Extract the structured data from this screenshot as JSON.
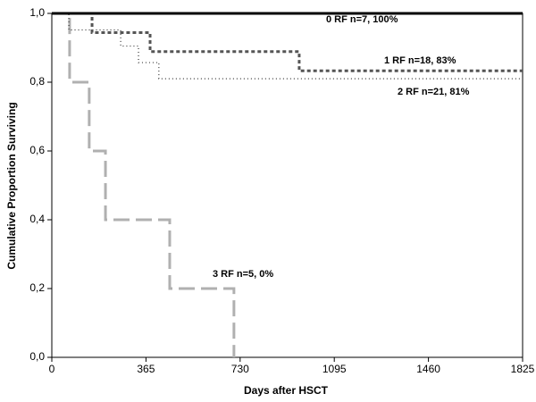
{
  "chart_data": {
    "type": "line",
    "xlabel": "Days after HSCT",
    "ylabel": "Cumulative Proportion Surviving",
    "xlim": [
      0,
      1825
    ],
    "xticks": [
      0,
      365,
      730,
      1095,
      1460,
      1825
    ],
    "ylim": [
      0,
      1
    ],
    "yticks": [
      {
        "value": 0,
        "label": "0,0"
      },
      {
        "value": 0.2,
        "label": "0,2"
      },
      {
        "value": 0.4,
        "label": "0,4"
      },
      {
        "value": 0.6,
        "label": "0,6"
      },
      {
        "value": 0.8,
        "label": "0,8"
      },
      {
        "value": 1,
        "label": "1,0"
      }
    ],
    "series": [
      {
        "name": "0 RF n=7, 100%",
        "color": "#000000",
        "dash": "none",
        "width": 3,
        "x": [
          0,
          1825
        ],
        "values": [
          1,
          1
        ]
      },
      {
        "name": "1 RF n=18, 83%",
        "color": "#555555",
        "dash": "4 3",
        "width": 3,
        "x": [
          0,
          156,
          156,
          381,
          381,
          959,
          959,
          1825
        ],
        "values": [
          1,
          1,
          0.944,
          0.944,
          0.889,
          0.889,
          0.833,
          0.833
        ]
      },
      {
        "name": "2 RF n=21, 81%",
        "color": "#333333",
        "dash": "1 3",
        "width": 1.2,
        "x": [
          0,
          66,
          66,
          267,
          267,
          336,
          336,
          415,
          415,
          1825
        ],
        "values": [
          1,
          1,
          0.952,
          0.952,
          0.905,
          0.905,
          0.857,
          0.857,
          0.81,
          0.81
        ]
      },
      {
        "name": "3 RF n=5, 0%",
        "color": "#b0b0b0",
        "dash": "18 7",
        "width": 3,
        "x": [
          0,
          69,
          69,
          145,
          145,
          208,
          208,
          457,
          457,
          706,
          706
        ],
        "values": [
          1,
          1,
          0.8,
          0.8,
          0.6,
          0.6,
          0.4,
          0.4,
          0.2,
          0.2,
          0
        ]
      }
    ]
  }
}
